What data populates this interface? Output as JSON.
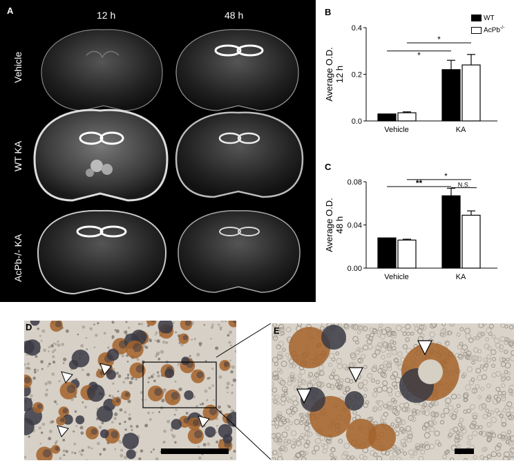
{
  "panelA": {
    "label": "A",
    "columns": [
      "12 h",
      "48 h"
    ],
    "rows": [
      "Vehicle",
      "WT KA",
      "AcPb-/- KA"
    ]
  },
  "panelB": {
    "label": "B"
  },
  "panelC": {
    "label": "C"
  },
  "panelD": {
    "label": "D"
  },
  "panelE": {
    "label": "E"
  },
  "chart_data": [
    {
      "type": "bar",
      "categories": [
        "Vehicle",
        "KA"
      ],
      "series": [
        {
          "name": "WT",
          "values": [
            0.03,
            0.22
          ],
          "errors": [
            0.0,
            0.04
          ]
        },
        {
          "name": "AcPb-/-",
          "values": [
            0.035,
            0.24
          ],
          "errors": [
            0.004,
            0.045
          ]
        }
      ],
      "ylabel_line1": "Average O.D.",
      "ylabel_line2": "12 h",
      "ylim": [
        0,
        0.4
      ],
      "yticks": [
        "0.0",
        "0.2",
        "0.4"
      ],
      "significance": [
        "*",
        "*"
      ],
      "legend_position": "top-right"
    },
    {
      "type": "bar",
      "categories": [
        "Vehicle",
        "KA"
      ],
      "series": [
        {
          "name": "WT",
          "values": [
            0.028,
            0.067
          ],
          "errors": [
            0.0,
            0.007
          ]
        },
        {
          "name": "AcPb-/-",
          "values": [
            0.026,
            0.049
          ],
          "errors": [
            0.0008,
            0.004
          ]
        }
      ],
      "ylabel_line1": "Average O.D.",
      "ylabel_line2": "48 h",
      "ylim": [
        0,
        0.08
      ],
      "yticks": [
        "0.00",
        "0.04",
        "0.08"
      ],
      "significance": [
        "**",
        "*",
        "N.S."
      ]
    }
  ],
  "legend": {
    "wt": "WT",
    "ko_base": "AcPb",
    "ko_sup": "-/-"
  },
  "colors": {
    "wt": "#000000",
    "ko": "#ffffff",
    "tissue_bg": "#c9c2b8",
    "brown": "#a4632a",
    "dark": "#2f2f3a"
  }
}
